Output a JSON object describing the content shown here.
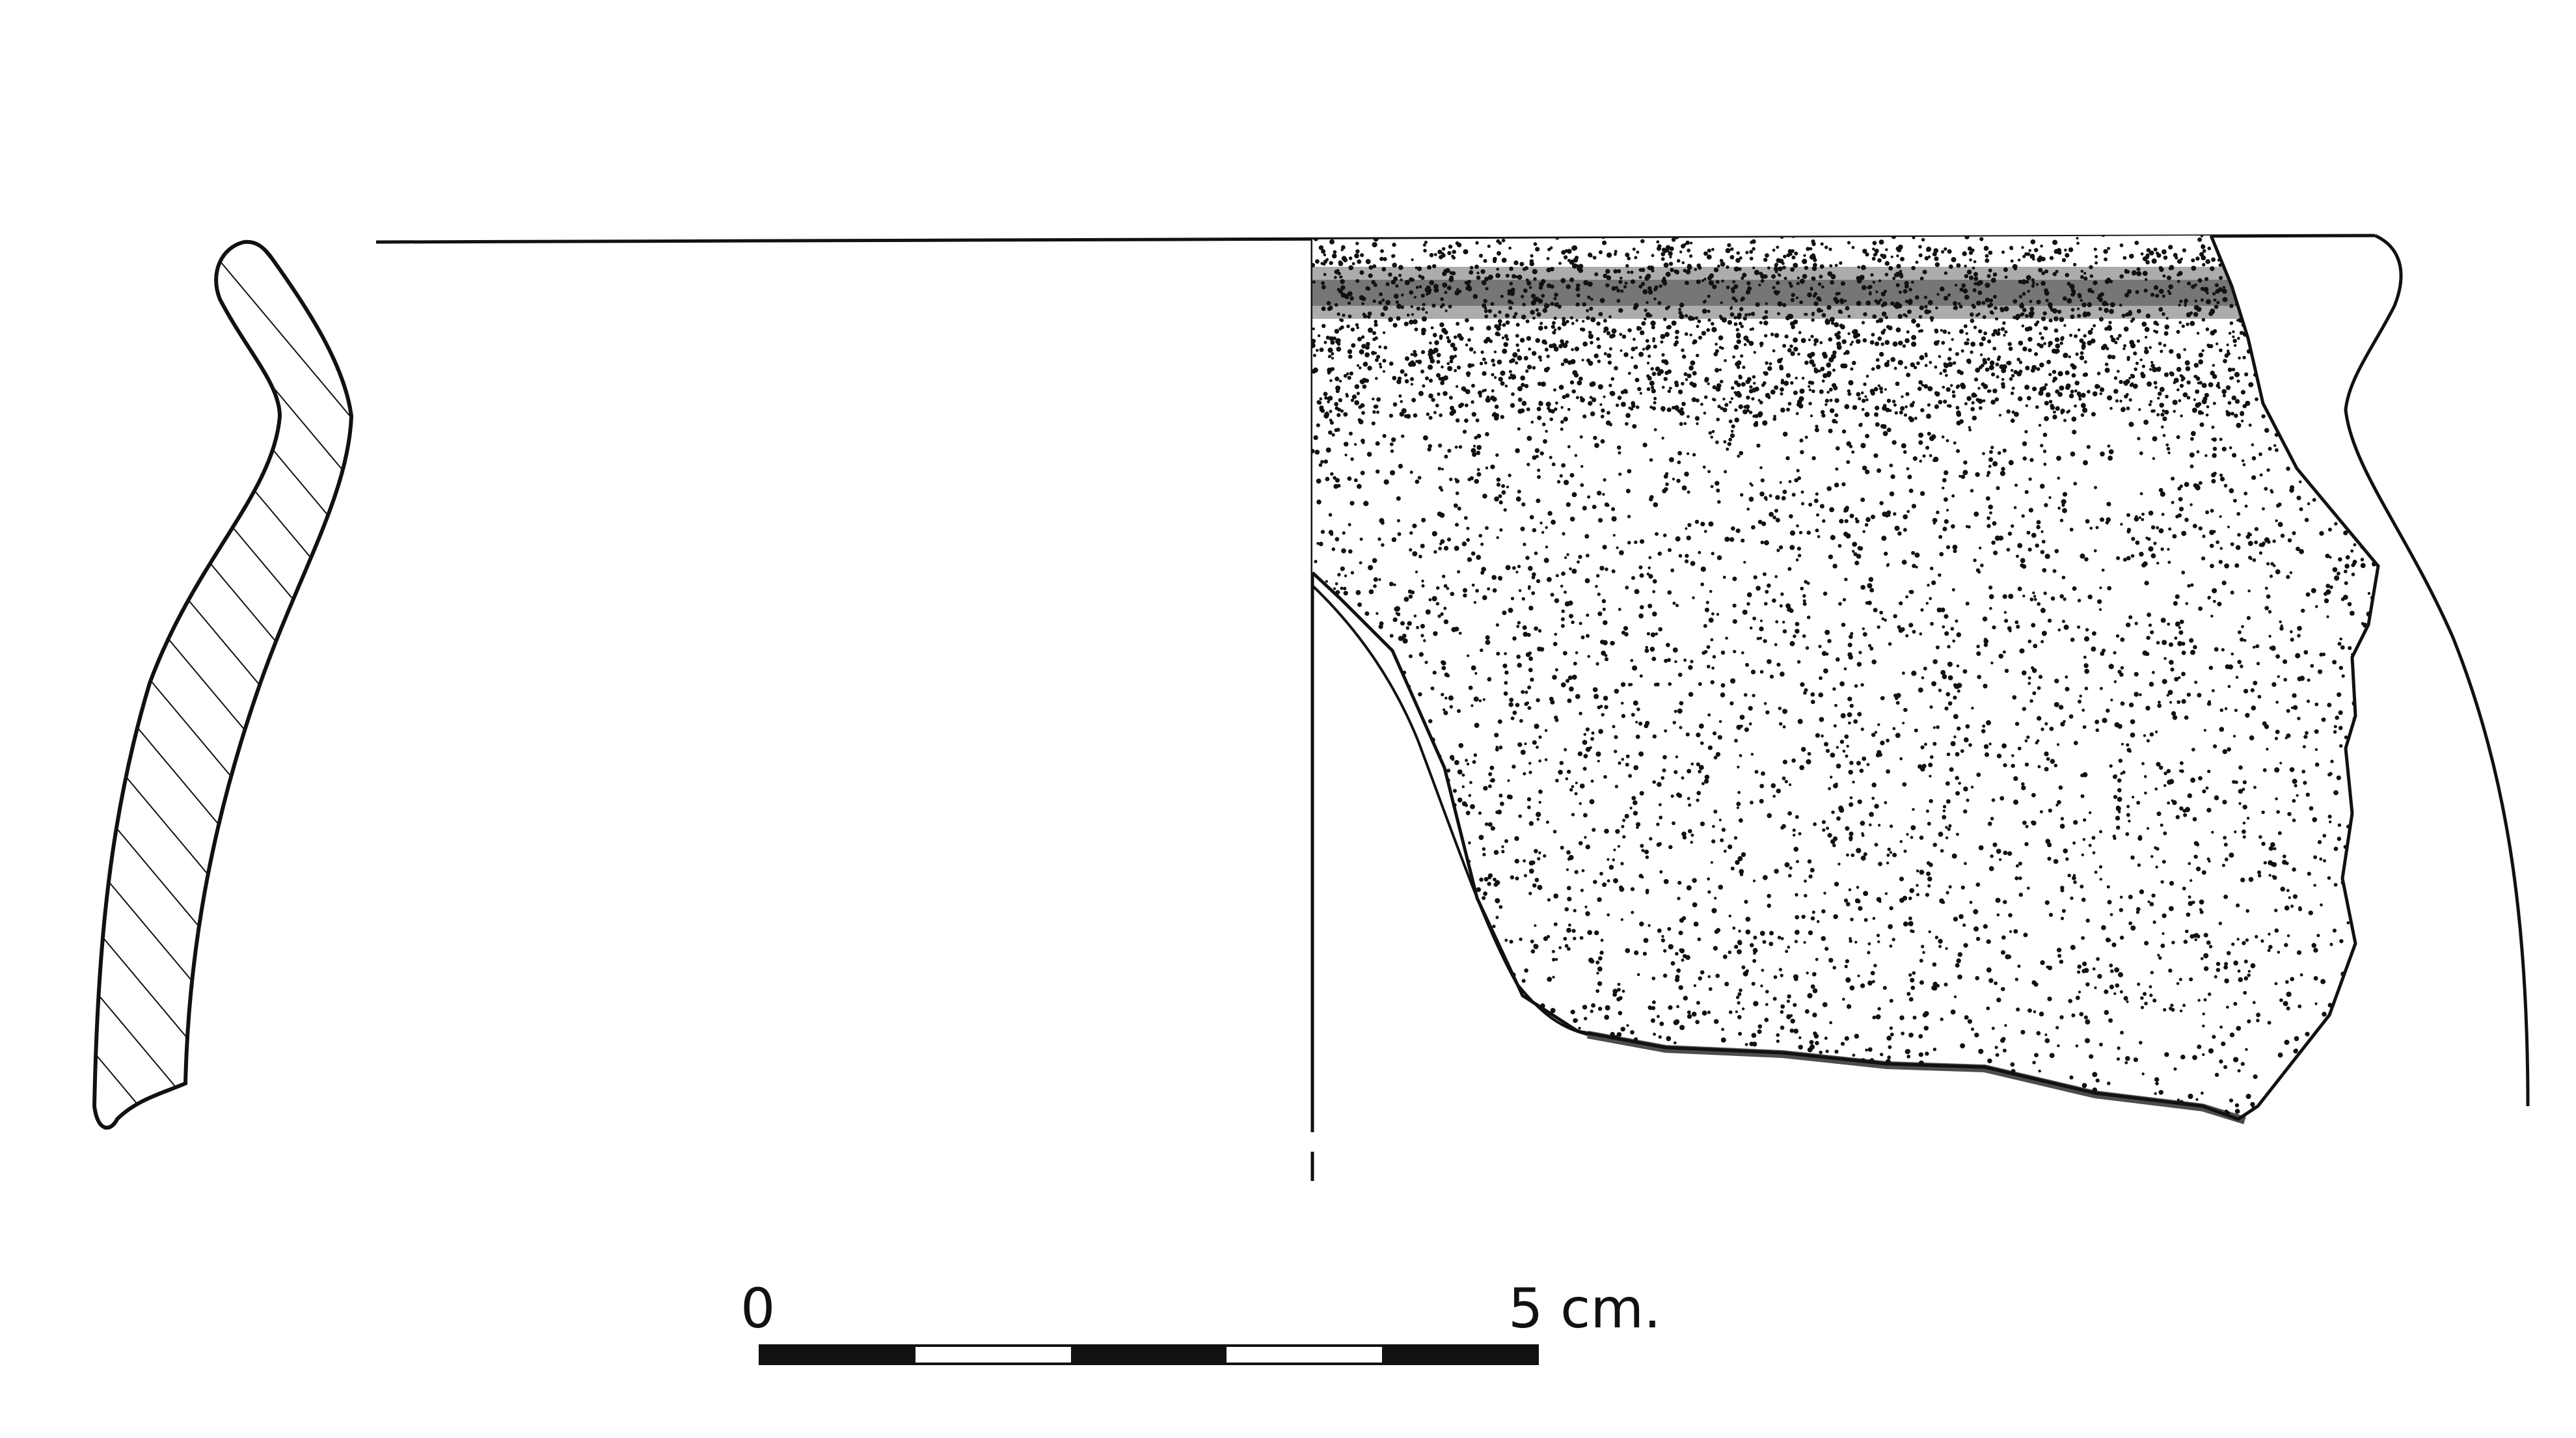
{
  "scale_bar": {
    "label_start": "0",
    "label_end": "5 cm.",
    "segments": 5
  },
  "colors": {
    "ink": "#111111",
    "paper": "#ffffff"
  },
  "figure": {
    "profile_section_fill": "diagonal-hatching",
    "exterior_surface_fill": "stipple"
  }
}
